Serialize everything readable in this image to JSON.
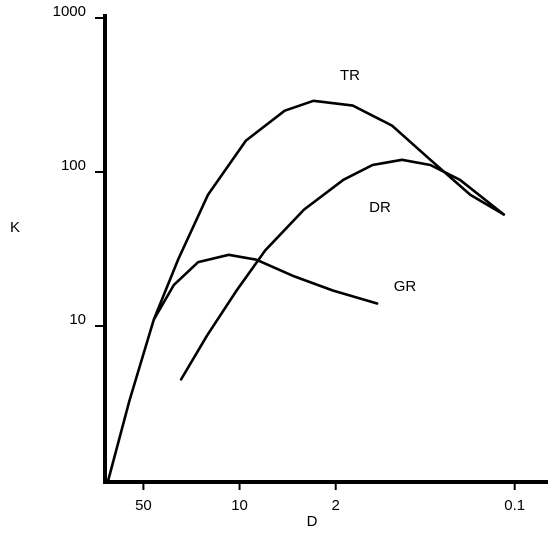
{
  "chart_data": {
    "type": "line",
    "x_label": "D",
    "y_label": "K",
    "xscale": "log",
    "yscale": "log",
    "xlim": [
      100,
      0.07
    ],
    "ylim": [
      1,
      1000
    ],
    "xticks": [
      50,
      10,
      2,
      0.1
    ],
    "yticks": [
      10,
      100,
      1000
    ],
    "series": [
      {
        "name": "TR",
        "color": "#000000",
        "x": [
          90,
          63,
          42,
          28,
          17,
          9,
          4.7,
          2.9,
          1.5,
          0.78,
          0.41,
          0.21,
          0.12
        ],
        "values": [
          1,
          3.3,
          11,
          27,
          71,
          160,
          250,
          290,
          270,
          200,
          120,
          71,
          53
        ]
      },
      {
        "name": "DR",
        "color": "#000000",
        "x": [
          26.6,
          17.2,
          10.5,
          6.5,
          3.4,
          1.76,
          1.08,
          0.66,
          0.41,
          0.25,
          0.12
        ],
        "values": [
          4.5,
          8.7,
          17,
          31,
          57,
          89,
          111,
          120,
          111,
          89,
          53
        ]
      },
      {
        "name": "GR",
        "color": "#000000",
        "x": [
          42,
          30,
          20,
          12,
          7.6,
          4,
          2.1,
          1
        ],
        "values": [
          11,
          18.5,
          26,
          29,
          27,
          21,
          17,
          14
        ]
      }
    ]
  }
}
